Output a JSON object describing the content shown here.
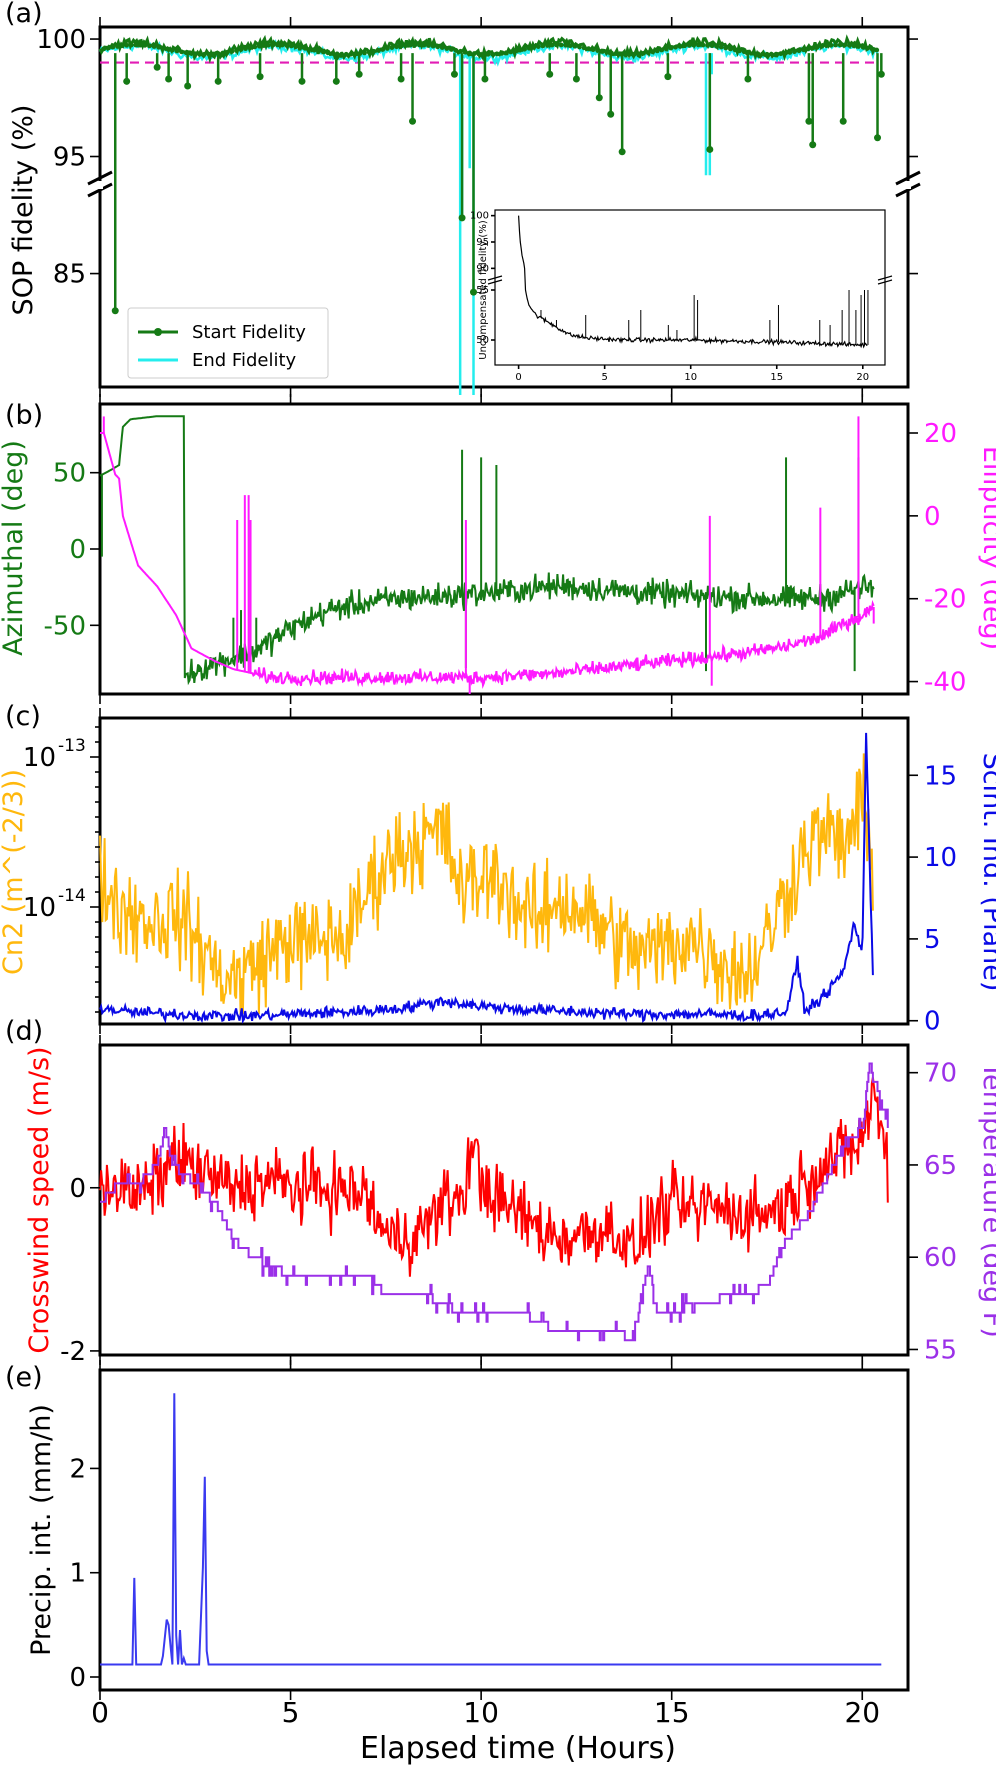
{
  "figure": {
    "x_axis_label": "Elapsed time (Hours)",
    "x_ticks": [
      "0",
      "5",
      "10",
      "15",
      "20"
    ]
  },
  "chart_data": [
    {
      "id": "a",
      "panel_label": "(a)",
      "type": "line",
      "ylabel": "SOP fidelity (%)",
      "ylim_upper": [
        94,
        100.3
      ],
      "ylim_lower": [
        79,
        89.5
      ],
      "y_ticks_upper": [
        "100",
        "95"
      ],
      "y_ticks_lower": [
        "85"
      ],
      "threshold": 99,
      "legend_position": "lower-left",
      "series": [
        {
          "name": "Start Fidelity",
          "color": "#157a15",
          "dips": [
            [
              0.4,
              83
            ],
            [
              0.7,
              98.2
            ],
            [
              1.5,
              98.8
            ],
            [
              1.8,
              98.3
            ],
            [
              2.3,
              98
            ],
            [
              3.1,
              98.2
            ],
            [
              4.2,
              98.4
            ],
            [
              5.3,
              98.2
            ],
            [
              6.2,
              98.2
            ],
            [
              6.8,
              98.5
            ],
            [
              7.9,
              98.3
            ],
            [
              8.2,
              96.5
            ],
            [
              9.3,
              98.5
            ],
            [
              9.5,
              88
            ],
            [
              9.8,
              84
            ],
            [
              10.1,
              98.3
            ],
            [
              11.8,
              98.5
            ],
            [
              12.5,
              98.3
            ],
            [
              13.1,
              97.5
            ],
            [
              13.4,
              96.8
            ],
            [
              13.7,
              95.2
            ],
            [
              14.9,
              98.4
            ],
            [
              16.0,
              95.3
            ],
            [
              17.0,
              98.3
            ],
            [
              18.6,
              96.5
            ],
            [
              18.7,
              95.5
            ],
            [
              19.5,
              96.5
            ],
            [
              20.4,
              95.8
            ],
            [
              20.5,
              98.5
            ]
          ]
        },
        {
          "name": "End Fidelity",
          "color": "#24eded",
          "dips": [
            [
              9.45,
              60
            ],
            [
              9.5,
              88
            ],
            [
              9.7,
              94.5
            ],
            [
              9.8,
              60
            ],
            [
              15.9,
              94.2
            ],
            [
              16.0,
              94.2
            ],
            [
              16.05,
              98.5
            ]
          ]
        }
      ],
      "inset": {
        "ylabel": "Uncompensated fidelity (%)",
        "y_ticks_upper": [
          "100",
          "95",
          "90"
        ],
        "y_ticks_lower": [
          "55",
          "50"
        ],
        "x_ticks": [
          "0",
          "5",
          "10",
          "15",
          "20"
        ],
        "curve": [
          [
            0,
            100
          ],
          [
            0.05,
            97
          ],
          [
            0.1,
            95
          ],
          [
            0.2,
            92.5
          ],
          [
            0.3,
            91
          ],
          [
            0.35,
            90
          ],
          [
            0.4,
            55
          ],
          [
            0.6,
            53.5
          ],
          [
            1,
            52.5
          ],
          [
            1.5,
            52
          ],
          [
            2,
            51.5
          ],
          [
            2.5,
            51
          ],
          [
            3,
            50.5
          ],
          [
            4,
            50.2
          ],
          [
            6,
            50
          ],
          [
            10,
            50
          ],
          [
            15,
            49.8
          ],
          [
            20,
            49.5
          ],
          [
            20.3,
            49.5
          ]
        ],
        "spikes": [
          [
            1.3,
            53
          ],
          [
            2.2,
            52
          ],
          [
            3.9,
            52.5
          ],
          [
            6.4,
            52
          ],
          [
            7.1,
            53
          ],
          [
            8.7,
            51.5
          ],
          [
            9.2,
            51
          ],
          [
            10.2,
            54.5
          ],
          [
            10.4,
            54
          ],
          [
            14.6,
            52
          ],
          [
            15.1,
            53.5
          ],
          [
            17.5,
            52
          ],
          [
            18.1,
            51.5
          ],
          [
            18.8,
            53
          ],
          [
            19.2,
            55
          ],
          [
            19.6,
            53
          ],
          [
            19.9,
            54.5
          ],
          [
            20.1,
            55
          ],
          [
            20.3,
            55
          ]
        ]
      }
    },
    {
      "id": "b",
      "panel_label": "(b)",
      "type": "line",
      "ylabel_left": "Azimuthal (deg)",
      "ylabel_right": "Ellipticity (deg)",
      "ylim_left": [
        -95,
        95
      ],
      "ylim_right": [
        -43,
        27
      ],
      "y_ticks_left": [
        "50",
        "0",
        "-50"
      ],
      "y_ticks_right": [
        "20",
        "0",
        "-20",
        "-40"
      ],
      "series": [
        {
          "name": "Azimuthal (deg)",
          "axis": "left",
          "color": "#157a15",
          "x": [
            0,
            0.3,
            0.5,
            0.6,
            0.8,
            1.5,
            2.2,
            2.2,
            2.25,
            3,
            4,
            5,
            6,
            7,
            8,
            9,
            10,
            11,
            12,
            13,
            14,
            15,
            16,
            17,
            18,
            19,
            20,
            20.3
          ],
          "y": [
            48,
            52,
            55,
            80,
            85,
            87,
            87,
            -87,
            -82,
            -75,
            -68,
            -52,
            -40,
            -35,
            -32,
            -31,
            -29,
            -27,
            -24,
            -26,
            -28,
            -30,
            -31,
            -32,
            -33,
            -32,
            -25,
            -26
          ],
          "spikes": [
            [
              0.05,
              -5
            ],
            [
              3.5,
              -45
            ],
            [
              3.7,
              -40
            ],
            [
              4.1,
              -45
            ],
            [
              9.5,
              65
            ],
            [
              9.6,
              -78
            ],
            [
              10,
              60
            ],
            [
              10.4,
              55
            ],
            [
              15.9,
              -80
            ],
            [
              18.0,
              60
            ],
            [
              19.9,
              60
            ],
            [
              19.8,
              -80
            ]
          ],
          "noise": 6,
          "noise_start": 2.3
        },
        {
          "name": "Ellipticity (deg)",
          "axis": "right",
          "color": "#ff1aff",
          "x": [
            0,
            0.1,
            0.4,
            0.5,
            0.6,
            1,
            1.5,
            2,
            2.4,
            3,
            3.5,
            4,
            4.5,
            5,
            6,
            7,
            8,
            9,
            10,
            11,
            12,
            13,
            14,
            15,
            16,
            17,
            18,
            19,
            19.5,
            20,
            20.3
          ],
          "y": [
            20,
            20,
            10,
            9,
            0,
            -12,
            -17,
            -24,
            -32,
            -35,
            -37,
            -38,
            -39,
            -39,
            -39,
            -39,
            -39,
            -39,
            -39,
            -38.5,
            -38,
            -37,
            -36,
            -35,
            -34,
            -33,
            -31.5,
            -29,
            -26,
            -24,
            -22
          ],
          "spikes": [
            [
              0.1,
              24
            ],
            [
              3.6,
              -1
            ],
            [
              3.8,
              5
            ],
            [
              3.9,
              5
            ],
            [
              3.95,
              -1
            ],
            [
              9.6,
              -1
            ],
            [
              9.7,
              -43
            ],
            [
              16.0,
              0
            ],
            [
              16.05,
              -41
            ],
            [
              18.9,
              2
            ],
            [
              19.9,
              24
            ],
            [
              20.3,
              -26
            ]
          ],
          "noise": 1.2,
          "noise_start": 4
        }
      ]
    },
    {
      "id": "c",
      "panel_label": "(c)",
      "type": "line",
      "ylabel_left": "Cn2 (m^(-2/3))",
      "ylabel_right": "Scint. Ind. (Plane)",
      "ylim_left_log10": [
        -14.78,
        -12.74
      ],
      "ylim_right": [
        -0.2,
        18.5
      ],
      "y_ticks_left": [
        "10",
        "10"
      ],
      "y_ticks_left_exp": [
        "-13",
        "-14"
      ],
      "y_ticks_right": [
        "15",
        "10",
        "5",
        "0"
      ],
      "series": [
        {
          "name": "Cn2",
          "axis": "left",
          "color": "#ffb80d",
          "x": [
            0,
            0.5,
            1,
            1.5,
            2,
            2.5,
            3,
            3.5,
            4,
            4.5,
            5,
            5.5,
            6,
            6.5,
            7,
            7.5,
            8,
            8.5,
            9,
            9.5,
            10,
            10.5,
            11,
            11.5,
            12,
            12.5,
            13,
            13.5,
            14,
            14.5,
            15,
            15.5,
            16,
            16.5,
            17,
            17.5,
            18,
            18.5,
            19,
            19.5,
            20,
            20.3
          ],
          "log10": [
            -13.8,
            -14.0,
            -14.05,
            -14.1,
            -14.05,
            -14.2,
            -14.4,
            -14.5,
            -14.4,
            -14.3,
            -14.2,
            -14.25,
            -14.2,
            -14.2,
            -13.9,
            -13.7,
            -13.6,
            -13.55,
            -13.5,
            -13.9,
            -13.8,
            -13.8,
            -14.0,
            -14.1,
            -13.95,
            -14.0,
            -14.1,
            -14.2,
            -14.3,
            -14.3,
            -14.25,
            -14.2,
            -14.3,
            -14.4,
            -14.45,
            -14.2,
            -13.9,
            -13.6,
            -13.5,
            -13.6,
            -13.3,
            -13.8
          ],
          "noise": 0.22
        },
        {
          "name": "Scint. Ind. (Plane)",
          "axis": "right",
          "color": "#0a0ae6",
          "x": [
            0,
            0.5,
            1,
            2,
            3,
            4,
            5,
            6,
            7,
            8,
            9,
            10,
            11,
            12,
            13,
            14,
            15,
            16,
            17,
            18,
            18.3,
            18.5,
            19,
            19.5,
            19.8,
            20,
            20.1,
            20.2,
            20.3
          ],
          "y": [
            0.8,
            0.6,
            0.5,
            0.4,
            0.3,
            0.3,
            0.4,
            0.5,
            0.6,
            0.8,
            1.2,
            0.9,
            0.7,
            0.6,
            0.5,
            0.4,
            0.4,
            0.4,
            0.3,
            0.5,
            3.5,
            0.6,
            1.5,
            3,
            6,
            4,
            17.5,
            9,
            1.5
          ],
          "noise": 0.25
        }
      ]
    },
    {
      "id": "d",
      "panel_label": "(d)",
      "type": "line",
      "ylabel_left": "Crosswind speed (m/s)",
      "ylabel_right": "Temperature (deg F)",
      "ylim_left": [
        -2.05,
        1.75
      ],
      "ylim_right": [
        54.7,
        71.5
      ],
      "y_ticks_left": [
        "0",
        "-2"
      ],
      "y_ticks_right": [
        "70",
        "65",
        "60",
        "55"
      ],
      "series": [
        {
          "name": "Crosswind speed (m/s)",
          "axis": "left",
          "color": "#ff0000",
          "x": [
            0,
            0.5,
            1,
            1.5,
            2,
            2.5,
            3,
            3.5,
            4,
            4.5,
            5,
            5.5,
            6,
            6.5,
            7,
            7.5,
            8,
            8.5,
            9,
            9.5,
            9.8,
            10,
            10.5,
            11,
            11.5,
            12,
            12.5,
            13,
            13.5,
            14,
            14.5,
            15,
            15.5,
            16,
            16.5,
            17,
            17.5,
            18,
            18.5,
            19,
            19.5,
            20,
            20.3,
            20.7
          ],
          "y": [
            0.1,
            0.0,
            -0.1,
            0.1,
            0.4,
            0.2,
            0.1,
            0.0,
            0.05,
            0.1,
            0.0,
            0.0,
            0.0,
            -0.05,
            -0.1,
            -0.6,
            -0.6,
            -0.5,
            -0.2,
            -0.1,
            0.5,
            0.1,
            -0.2,
            -0.3,
            -0.5,
            -0.6,
            -0.6,
            -0.5,
            -0.5,
            -0.8,
            -0.4,
            -0.2,
            -0.3,
            -0.2,
            -0.3,
            -0.3,
            -0.3,
            -0.2,
            0.1,
            0.3,
            0.4,
            0.6,
            1.2,
            0.2
          ],
          "noise": 0.3
        },
        {
          "name": "Temperature (deg F)",
          "axis": "right",
          "color": "#9b30e8",
          "x": [
            0,
            0.5,
            1,
            1.5,
            1.7,
            1.9,
            2.5,
            3,
            3.5,
            4,
            5,
            5.5,
            6,
            6.5,
            7,
            7.5,
            8,
            8.5,
            9,
            9.5,
            10,
            10.5,
            11,
            11.5,
            12,
            12.5,
            13,
            13.5,
            14,
            14.2,
            14.4,
            14.6,
            15,
            15.5,
            16,
            16.5,
            17,
            17.5,
            17.8,
            18,
            18.5,
            19,
            19.5,
            20,
            20.2,
            20.4,
            20.7
          ],
          "y": [
            63,
            64,
            64,
            65,
            67,
            65,
            64,
            63,
            61,
            60,
            59,
            59,
            59,
            59,
            59,
            58,
            58,
            58,
            57.5,
            57,
            57,
            57,
            57,
            56.5,
            56,
            56,
            56,
            56,
            55.5,
            58,
            59.5,
            57,
            57,
            57.5,
            57.5,
            58,
            58,
            58.5,
            60,
            61,
            62,
            64,
            66,
            67,
            70.5,
            69,
            67
          ],
          "steps": true
        }
      ]
    },
    {
      "id": "e",
      "panel_label": "(e)",
      "type": "line",
      "ylabel": "Precip. int. (mm/h)",
      "ylim": [
        0,
        2.8
      ],
      "y_ticks": [
        "2",
        "1",
        "0"
      ],
      "series": [
        {
          "name": "Precip. int. (mm/h)",
          "color": "#3a3af0",
          "x": [
            0,
            0.85,
            0.9,
            0.95,
            1.6,
            1.65,
            1.75,
            1.8,
            1.85,
            1.9,
            1.95,
            2.0,
            2.05,
            2.1,
            2.15,
            2.2,
            2.25,
            2.6,
            2.7,
            2.75,
            2.8,
            2.85,
            2.9,
            20.5
          ],
          "y": [
            0.12,
            0.12,
            0.95,
            0.12,
            0.12,
            0.2,
            0.55,
            0.5,
            0.3,
            0.12,
            2.72,
            0.4,
            0.12,
            0.45,
            0.12,
            0.18,
            0.12,
            0.12,
            1.05,
            1.92,
            0.25,
            0.12,
            0.12,
            0.12
          ]
        }
      ]
    }
  ]
}
